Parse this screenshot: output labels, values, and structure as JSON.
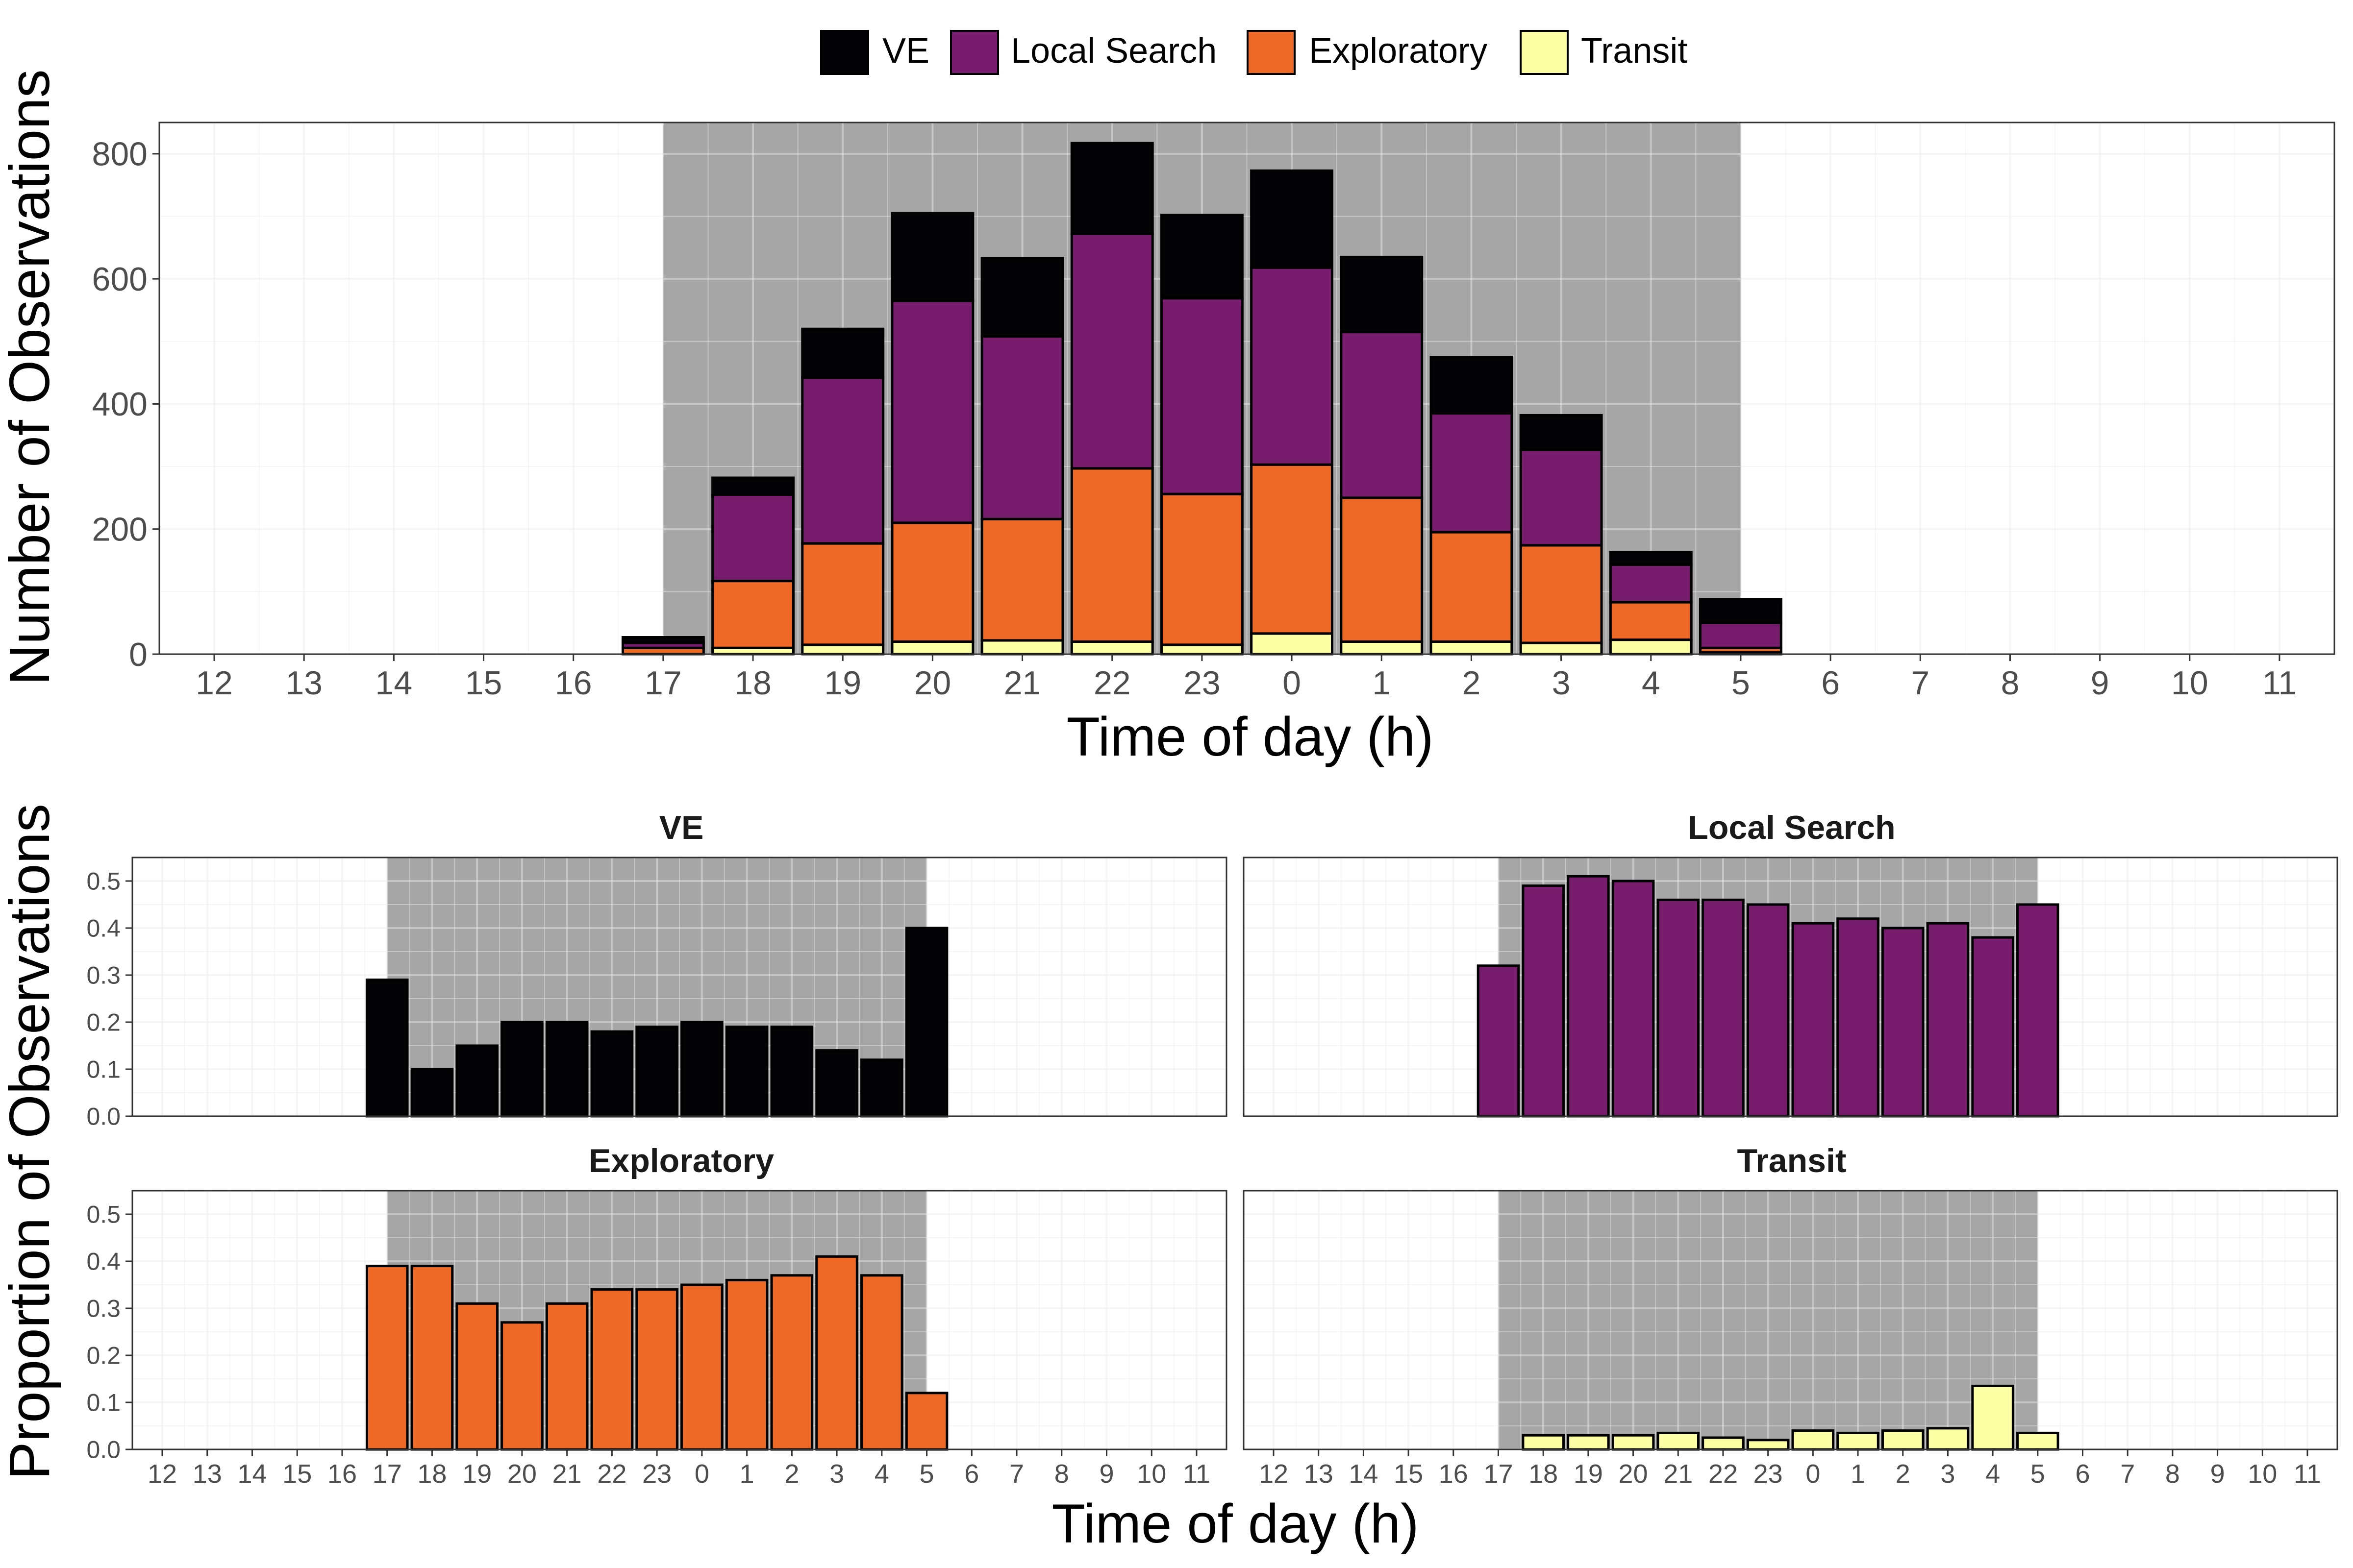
{
  "legend": {
    "position": "top",
    "items": [
      {
        "label": "VE",
        "color": "#030305"
      },
      {
        "label": "Local Search",
        "color": "#781c6d"
      },
      {
        "label": "Exploratory",
        "color": "#ed6925"
      },
      {
        "label": "Transit",
        "color": "#fcffa4"
      }
    ]
  },
  "colors": {
    "night_shade": "#a6a6a6",
    "panel_border": "#333333",
    "grid": "#ebebeb",
    "bar_outline": "#000000"
  },
  "chart_data": [
    {
      "id": "counts",
      "type": "bar",
      "stacked": true,
      "title": "",
      "xlabel": "Time of day (h)",
      "ylabel": "Number of Observations",
      "ylim": [
        0,
        850
      ],
      "yticks": [
        0,
        200,
        400,
        600,
        800
      ],
      "grid": true,
      "shaded_period": {
        "from": "17",
        "to": "5"
      },
      "categories": [
        "12",
        "13",
        "14",
        "15",
        "16",
        "17",
        "18",
        "19",
        "20",
        "21",
        "22",
        "23",
        "0",
        "1",
        "2",
        "3",
        "4",
        "5",
        "6",
        "7",
        "8",
        "9",
        "10",
        "11"
      ],
      "stack_order": [
        "Transit",
        "Exploratory",
        "Local Search",
        "VE"
      ],
      "series": [
        {
          "name": "Transit",
          "values": [
            0,
            0,
            0,
            0,
            0,
            0,
            10,
            15,
            20,
            22,
            20,
            15,
            33,
            20,
            20,
            18,
            23,
            3,
            0,
            0,
            0,
            0,
            0,
            0
          ]
        },
        {
          "name": "Exploratory",
          "values": [
            0,
            0,
            0,
            0,
            0,
            10,
            107,
            162,
            190,
            194,
            277,
            241,
            270,
            230,
            175,
            156,
            60,
            7,
            0,
            0,
            0,
            0,
            0,
            0
          ]
        },
        {
          "name": "Local Search",
          "values": [
            0,
            0,
            0,
            0,
            0,
            8,
            138,
            265,
            355,
            292,
            375,
            313,
            315,
            265,
            190,
            153,
            60,
            40,
            0,
            0,
            0,
            0,
            0,
            0
          ]
        },
        {
          "name": "VE",
          "values": [
            0,
            0,
            0,
            0,
            0,
            9,
            27,
            78,
            140,
            125,
            145,
            133,
            155,
            120,
            90,
            55,
            20,
            38,
            0,
            0,
            0,
            0,
            0,
            0
          ]
        }
      ]
    },
    {
      "id": "ve",
      "type": "bar",
      "title": "VE",
      "xlabel": "Time of day (h)",
      "ylabel": "Proportion of Observations",
      "ylim": [
        0,
        0.55
      ],
      "yticks": [
        0.0,
        0.1,
        0.2,
        0.3,
        0.4,
        0.5
      ],
      "ytick_labels": [
        "0.0",
        "0.1",
        "0.2",
        "0.3",
        "0.4",
        "0.5"
      ],
      "grid": true,
      "shaded_period": {
        "from": "17",
        "to": "5"
      },
      "categories": [
        "12",
        "13",
        "14",
        "15",
        "16",
        "17",
        "18",
        "19",
        "20",
        "21",
        "22",
        "23",
        "0",
        "1",
        "2",
        "3",
        "4",
        "5",
        "6",
        "7",
        "8",
        "9",
        "10",
        "11"
      ],
      "series": [
        {
          "name": "VE",
          "values": [
            null,
            null,
            null,
            null,
            null,
            0.29,
            0.1,
            0.15,
            0.2,
            0.2,
            0.18,
            0.19,
            0.2,
            0.19,
            0.19,
            0.14,
            0.12,
            0.4,
            null,
            null,
            null,
            null,
            null,
            null
          ]
        }
      ]
    },
    {
      "id": "local",
      "type": "bar",
      "title": "Local Search",
      "xlabel": "Time of day (h)",
      "ylabel": "Proportion of Observations",
      "ylim": [
        0,
        0.55
      ],
      "yticks": [
        0.0,
        0.1,
        0.2,
        0.3,
        0.4,
        0.5
      ],
      "ytick_labels": [
        "0.0",
        "0.1",
        "0.2",
        "0.3",
        "0.4",
        "0.5"
      ],
      "grid": true,
      "shaded_period": {
        "from": "17",
        "to": "5"
      },
      "categories": [
        "12",
        "13",
        "14",
        "15",
        "16",
        "17",
        "18",
        "19",
        "20",
        "21",
        "22",
        "23",
        "0",
        "1",
        "2",
        "3",
        "4",
        "5",
        "6",
        "7",
        "8",
        "9",
        "10",
        "11"
      ],
      "series": [
        {
          "name": "Local Search",
          "values": [
            null,
            null,
            null,
            null,
            null,
            0.32,
            0.49,
            0.51,
            0.5,
            0.46,
            0.46,
            0.45,
            0.41,
            0.42,
            0.4,
            0.41,
            0.38,
            0.45,
            null,
            null,
            null,
            null,
            null,
            null
          ]
        }
      ]
    },
    {
      "id": "exploratory",
      "type": "bar",
      "title": "Exploratory",
      "xlabel": "Time of day (h)",
      "ylabel": "Proportion of Observations",
      "ylim": [
        0,
        0.55
      ],
      "yticks": [
        0.0,
        0.1,
        0.2,
        0.3,
        0.4,
        0.5
      ],
      "ytick_labels": [
        "0.0",
        "0.1",
        "0.2",
        "0.3",
        "0.4",
        "0.5"
      ],
      "grid": true,
      "shaded_period": {
        "from": "17",
        "to": "5"
      },
      "categories": [
        "12",
        "13",
        "14",
        "15",
        "16",
        "17",
        "18",
        "19",
        "20",
        "21",
        "22",
        "23",
        "0",
        "1",
        "2",
        "3",
        "4",
        "5",
        "6",
        "7",
        "8",
        "9",
        "10",
        "11"
      ],
      "series": [
        {
          "name": "Exploratory",
          "values": [
            null,
            null,
            null,
            null,
            null,
            0.39,
            0.39,
            0.31,
            0.27,
            0.31,
            0.34,
            0.34,
            0.35,
            0.36,
            0.37,
            0.41,
            0.37,
            0.12,
            null,
            null,
            null,
            null,
            null,
            null
          ]
        }
      ]
    },
    {
      "id": "transit",
      "type": "bar",
      "title": "Transit",
      "xlabel": "Time of day (h)",
      "ylabel": "Proportion of Observations",
      "ylim": [
        0,
        0.55
      ],
      "yticks": [
        0.0,
        0.1,
        0.2,
        0.3,
        0.4,
        0.5
      ],
      "ytick_labels": [
        "0.0",
        "0.1",
        "0.2",
        "0.3",
        "0.4",
        "0.5"
      ],
      "grid": true,
      "shaded_period": {
        "from": "17",
        "to": "5"
      },
      "categories": [
        "12",
        "13",
        "14",
        "15",
        "16",
        "17",
        "18",
        "19",
        "20",
        "21",
        "22",
        "23",
        "0",
        "1",
        "2",
        "3",
        "4",
        "5",
        "6",
        "7",
        "8",
        "9",
        "10",
        "11"
      ],
      "series": [
        {
          "name": "Transit",
          "values": [
            null,
            null,
            null,
            null,
            null,
            0.0,
            0.03,
            0.03,
            0.03,
            0.035,
            0.025,
            0.02,
            0.04,
            0.035,
            0.04,
            0.045,
            0.135,
            0.035,
            null,
            null,
            null,
            null,
            null,
            null
          ]
        }
      ]
    }
  ]
}
